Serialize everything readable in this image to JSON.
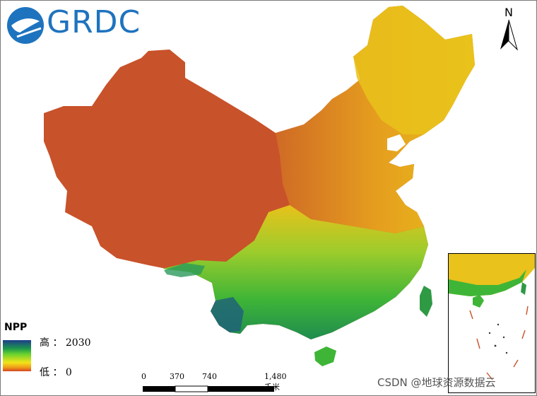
{
  "logo": {
    "text": "GRDC"
  },
  "north_arrow": {
    "label": "N"
  },
  "legend": {
    "title": "NPP",
    "high_label": "高 ： 2030",
    "low_label": "低 ： 0",
    "colors": [
      "#1d3d8c",
      "#1f9a4a",
      "#6ad22e",
      "#f2e419",
      "#ef9a1a",
      "#d4451f"
    ]
  },
  "scale_bar": {
    "ticks": [
      "0",
      "370",
      "740",
      "1,480 千米"
    ]
  },
  "watermark": "CSDN @地球资源数据云",
  "colors": {
    "low": "#c8522a",
    "mid": "#e5b21c",
    "high_green": "#3fb537",
    "dense": "#1e7a55",
    "logo_blue": "#1e73be"
  }
}
